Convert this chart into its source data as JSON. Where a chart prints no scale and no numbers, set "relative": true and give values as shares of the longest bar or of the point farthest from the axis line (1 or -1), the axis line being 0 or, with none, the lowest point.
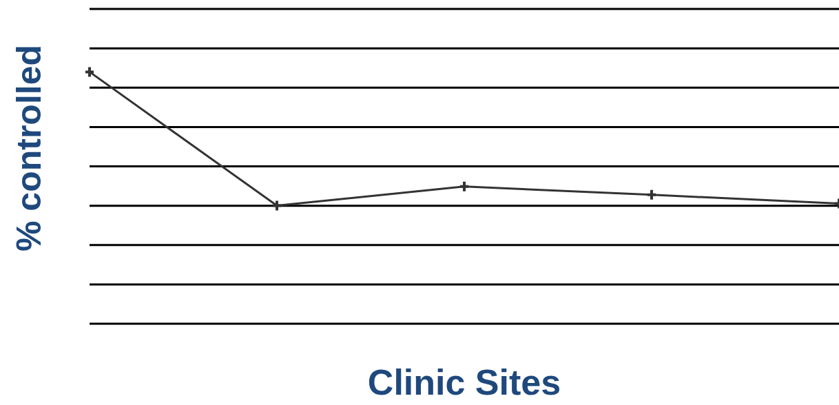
{
  "chart_data": {
    "type": "line",
    "xlabel": "Clinic Sites",
    "ylabel": "% controlled",
    "relative": true,
    "categories": [
      null,
      null,
      null,
      null,
      null
    ],
    "series": [
      {
        "color": "#333333",
        "values": [
          1,
          0.469,
          0.545,
          0.512,
          0.477
        ]
      }
    ],
    "grid": "y",
    "marker": "cross",
    "line_style": "solid",
    "legend": false
  }
}
